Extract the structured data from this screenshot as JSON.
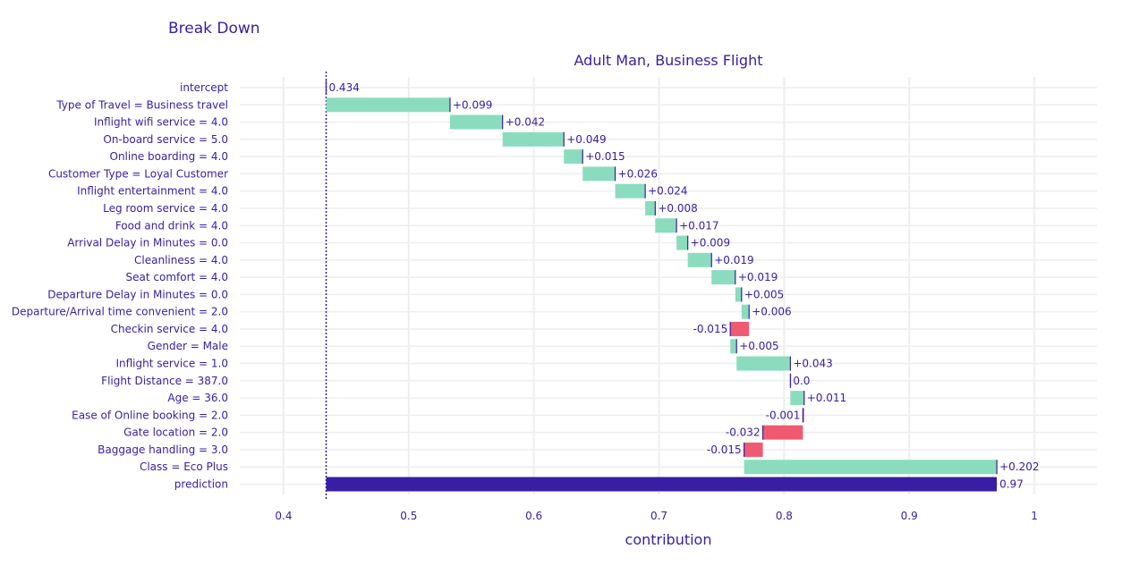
{
  "title": "Break Down",
  "colors": {
    "text": "#371ea3",
    "positive": "#8bdcbe",
    "negative": "#f05a71",
    "prediction": "#371ea3",
    "grid": "#eeeeee"
  },
  "chart_data": {
    "type": "bar",
    "orientation": "horizontal-waterfall",
    "subtitle": "Adult Man, Business Flight",
    "xlabel": "contribution",
    "xlim": [
      0.365,
      1.05
    ],
    "xticks": [
      {
        "value": 0.4,
        "label": "0.4"
      },
      {
        "value": 0.5,
        "label": "0.5"
      },
      {
        "value": 0.6,
        "label": "0.6"
      },
      {
        "value": 0.7,
        "label": "0.7"
      },
      {
        "value": 0.8,
        "label": "0.8"
      },
      {
        "value": 0.9,
        "label": "0.9"
      },
      {
        "value": 1.0,
        "label": "1"
      }
    ],
    "grid": true,
    "intercept_line": 0.434,
    "rows": [
      {
        "label": "intercept",
        "start": 0.434,
        "end": 0.434,
        "text": "0.434",
        "kind": "intercept"
      },
      {
        "label": "Type of Travel = Business travel",
        "start": 0.434,
        "end": 0.533,
        "text": "+0.099",
        "kind": "positive"
      },
      {
        "label": "Inflight wifi service = 4.0",
        "start": 0.533,
        "end": 0.575,
        "text": "+0.042",
        "kind": "positive"
      },
      {
        "label": "On-board service = 5.0",
        "start": 0.575,
        "end": 0.624,
        "text": "+0.049",
        "kind": "positive"
      },
      {
        "label": "Online boarding = 4.0",
        "start": 0.624,
        "end": 0.639,
        "text": "+0.015",
        "kind": "positive"
      },
      {
        "label": "Customer Type = Loyal Customer",
        "start": 0.639,
        "end": 0.665,
        "text": "+0.026",
        "kind": "positive"
      },
      {
        "label": "Inflight entertainment = 4.0",
        "start": 0.665,
        "end": 0.689,
        "text": "+0.024",
        "kind": "positive"
      },
      {
        "label": "Leg room service = 4.0",
        "start": 0.689,
        "end": 0.697,
        "text": "+0.008",
        "kind": "positive"
      },
      {
        "label": "Food and drink = 4.0",
        "start": 0.697,
        "end": 0.714,
        "text": "+0.017",
        "kind": "positive"
      },
      {
        "label": "Arrival Delay in Minutes = 0.0",
        "start": 0.714,
        "end": 0.723,
        "text": "+0.009",
        "kind": "positive"
      },
      {
        "label": "Cleanliness = 4.0",
        "start": 0.723,
        "end": 0.742,
        "text": "+0.019",
        "kind": "positive"
      },
      {
        "label": "Seat comfort = 4.0",
        "start": 0.742,
        "end": 0.761,
        "text": "+0.019",
        "kind": "positive"
      },
      {
        "label": "Departure Delay in Minutes = 0.0",
        "start": 0.761,
        "end": 0.766,
        "text": "+0.005",
        "kind": "positive"
      },
      {
        "label": "Departure/Arrival time convenient = 2.0",
        "start": 0.766,
        "end": 0.772,
        "text": "+0.006",
        "kind": "positive"
      },
      {
        "label": "Checkin service = 4.0",
        "start": 0.772,
        "end": 0.757,
        "text": "-0.015",
        "kind": "negative"
      },
      {
        "label": "Gender = Male",
        "start": 0.757,
        "end": 0.762,
        "text": "+0.005",
        "kind": "positive"
      },
      {
        "label": "Inflight service = 1.0",
        "start": 0.762,
        "end": 0.805,
        "text": "+0.043",
        "kind": "positive"
      },
      {
        "label": "Flight Distance = 387.0",
        "start": 0.805,
        "end": 0.805,
        "text": "0.0",
        "kind": "positive"
      },
      {
        "label": "Age = 36.0",
        "start": 0.805,
        "end": 0.816,
        "text": "+0.011",
        "kind": "positive"
      },
      {
        "label": "Ease of Online booking = 2.0",
        "start": 0.816,
        "end": 0.815,
        "text": "-0.001",
        "kind": "negative"
      },
      {
        "label": "Gate location = 2.0",
        "start": 0.815,
        "end": 0.783,
        "text": "-0.032",
        "kind": "negative"
      },
      {
        "label": "Baggage handling = 3.0",
        "start": 0.783,
        "end": 0.768,
        "text": "-0.015",
        "kind": "negative"
      },
      {
        "label": "Class = Eco Plus",
        "start": 0.768,
        "end": 0.97,
        "text": "+0.202",
        "kind": "positive"
      },
      {
        "label": "prediction",
        "start": 0.434,
        "end": 0.97,
        "text": "0.97",
        "kind": "prediction"
      }
    ]
  }
}
